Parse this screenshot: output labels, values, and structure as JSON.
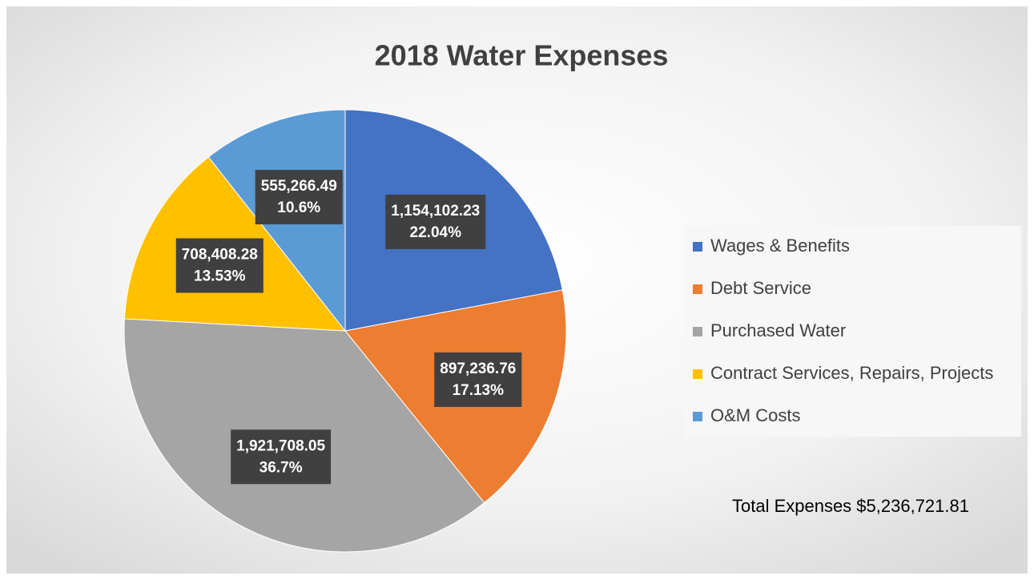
{
  "chart_data": {
    "type": "pie",
    "title": "2018 Water Expenses",
    "categories": [
      "Wages & Benefits",
      "Debt Service",
      "Purchased Water",
      "Contract Services, Repairs, Projects",
      "O&M Costs"
    ],
    "values": [
      1154102.23,
      897236.76,
      1921708.05,
      708408.28,
      555266.49
    ],
    "value_labels": [
      "1,154,102.23",
      "897,236.76",
      "1,921,708.05",
      "708,408.28",
      "555,266.49"
    ],
    "percent_labels": [
      "22.04%",
      "17.13%",
      "36.7%",
      "13.53%",
      "10.6%"
    ],
    "colors": [
      "#4472c4",
      "#ed7d31",
      "#a5a5a5",
      "#ffc000",
      "#5b9bd5"
    ],
    "legend": "right",
    "annotation": "Total Expenses $5,236,721.81"
  }
}
